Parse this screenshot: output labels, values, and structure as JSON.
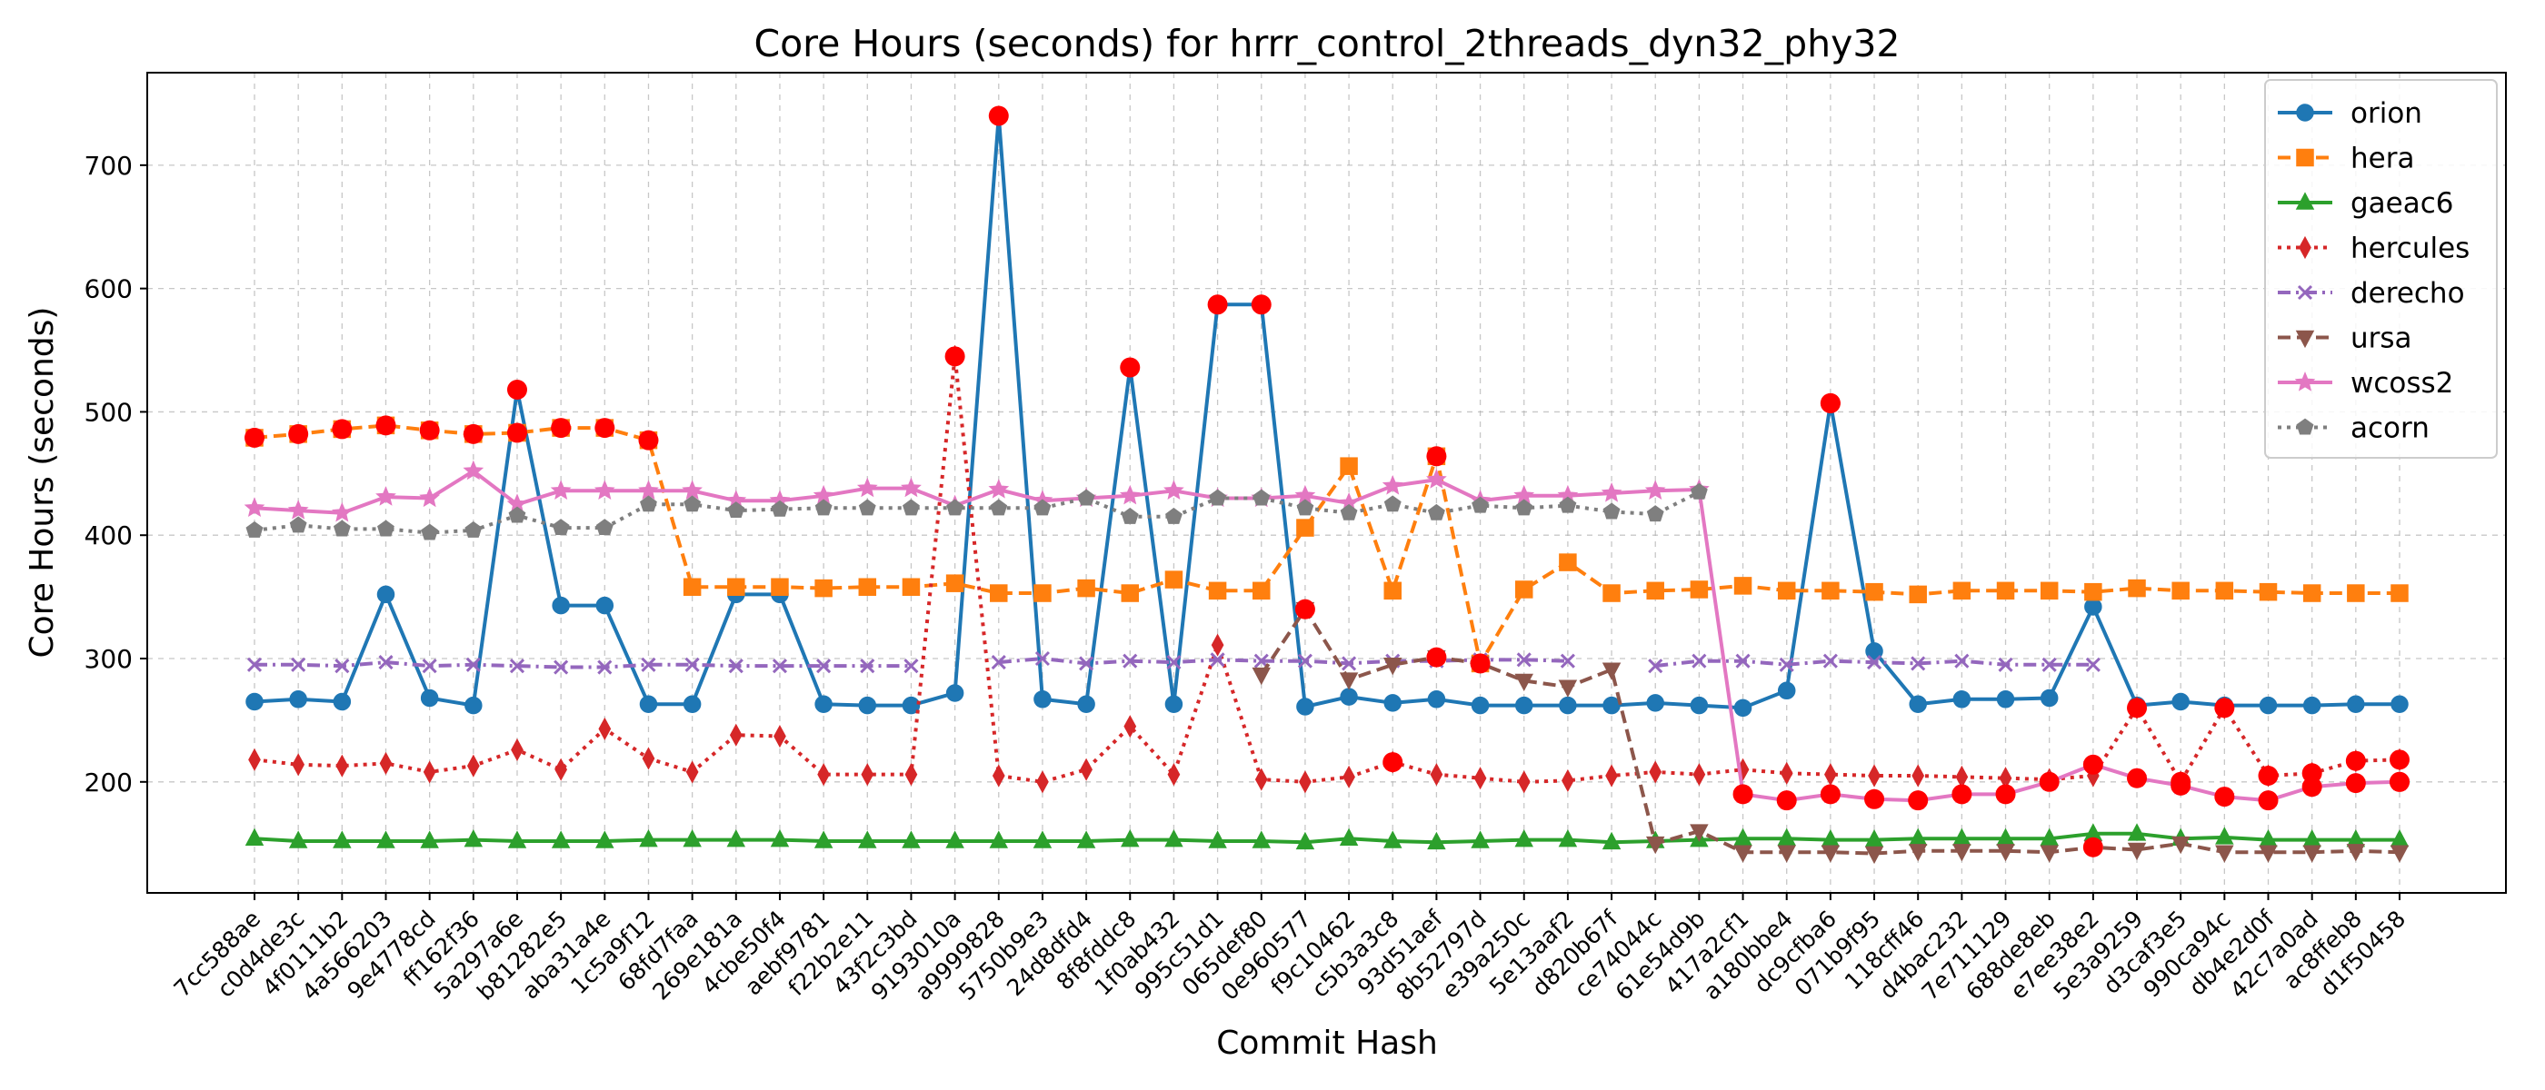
{
  "chart_data": {
    "type": "line",
    "title": "Core Hours (seconds) for hrrr_control_2threads_dyn32_phy32",
    "xlabel": "Commit Hash",
    "ylabel": "Core Hours (seconds)",
    "ylim": [
      110,
      775
    ],
    "yticks": [
      200,
      300,
      400,
      500,
      600,
      700
    ],
    "grid": true,
    "legend_position": "top-right",
    "categories": [
      "7cc588ae",
      "c0d4de3c",
      "4f0111b2",
      "4a566203",
      "9e4778cd",
      "ff162f36",
      "5a297a6e",
      "b81282e5",
      "aba31a4e",
      "1c5a9f12",
      "68fd7faa",
      "269e181a",
      "4cbe50f4",
      "aebf9781",
      "f22b2e11",
      "43f2c3bd",
      "9193010a",
      "a9999828",
      "5750b9e3",
      "24d8dfd4",
      "8f8fddc8",
      "1f0ab432",
      "995c51d1",
      "065def80",
      "0e960577",
      "f9c10462",
      "c5b3a3c8",
      "93d51aef",
      "8b52797d",
      "e39a250c",
      "5e13aaf2",
      "d820b67f",
      "ce74044c",
      "61e54d9b",
      "417a2cf1",
      "a180bbe4",
      "dc9cfba6",
      "071b9f95",
      "118cff46",
      "d4bac232",
      "7e711129",
      "688de8eb",
      "e7ee38e2",
      "5e3a9259",
      "d3caf3e5",
      "990ca94c",
      "db4e2d0f",
      "42c7a0ad",
      "ac8ffeb8",
      "d1f50458"
    ],
    "series": [
      {
        "name": "orion",
        "color": "#1f77b4",
        "dash": "solid",
        "marker": "circle",
        "values": [
          265,
          267,
          265,
          352,
          268,
          262,
          518,
          343,
          343,
          263,
          263,
          352,
          352,
          263,
          262,
          262,
          272,
          740,
          267,
          263,
          536,
          263,
          587,
          587,
          261,
          269,
          264,
          267,
          262,
          262,
          262,
          262,
          264,
          262,
          260,
          274,
          507,
          306,
          263,
          267,
          267,
          268,
          342,
          262,
          265,
          262,
          262,
          262,
          263,
          263
        ]
      },
      {
        "name": "hera",
        "color": "#ff7f0e",
        "dash": "dashed",
        "marker": "square",
        "values": [
          479,
          482,
          486,
          489,
          485,
          482,
          483,
          487,
          487,
          477,
          358,
          358,
          358,
          357,
          358,
          358,
          361,
          353,
          353,
          357,
          353,
          364,
          355,
          355,
          406,
          456,
          355,
          464,
          296,
          356,
          378,
          353,
          355,
          356,
          359,
          355,
          355,
          354,
          352,
          355,
          355,
          355,
          354,
          357,
          355,
          355,
          354,
          353,
          353,
          353
        ]
      },
      {
        "name": "gaeac6",
        "color": "#2ca02c",
        "dash": "solid",
        "marker": "triangle-up",
        "values": [
          154,
          152,
          152,
          152,
          152,
          153,
          152,
          152,
          152,
          153,
          153,
          153,
          153,
          152,
          152,
          152,
          152,
          152,
          152,
          152,
          153,
          153,
          152,
          152,
          151,
          154,
          152,
          151,
          152,
          153,
          153,
          151,
          152,
          153,
          154,
          154,
          153,
          153,
          154,
          154,
          154,
          154,
          158,
          158,
          154,
          155,
          153,
          153,
          153,
          153
        ]
      },
      {
        "name": "hercules",
        "color": "#d62728",
        "dash": "dotted",
        "marker": "diamond",
        "values": [
          218,
          214,
          213,
          215,
          208,
          213,
          226,
          210,
          243,
          219,
          208,
          238,
          237,
          206,
          206,
          206,
          545,
          205,
          200,
          210,
          245,
          206,
          311,
          202,
          200,
          204,
          216,
          206,
          203,
          200,
          201,
          205,
          208,
          206,
          210,
          207,
          206,
          205,
          205,
          204,
          203,
          202,
          205,
          260,
          200,
          260,
          205,
          207,
          217,
          218
        ]
      },
      {
        "name": "derecho",
        "color": "#9467bd",
        "dash": "dashdot",
        "marker": "x",
        "values": [
          295,
          295,
          294,
          297,
          294,
          295,
          294,
          293,
          293,
          295,
          295,
          294,
          294,
          294,
          294,
          294,
          null,
          297,
          300,
          296,
          298,
          297,
          299,
          298,
          298,
          296,
          298,
          298,
          299,
          299,
          298,
          null,
          294,
          298,
          298,
          295,
          298,
          297,
          296,
          298,
          295,
          295,
          295,
          null,
          null,
          null,
          null,
          null,
          null,
          null
        ]
      },
      {
        "name": "ursa",
        "color": "#8c564b",
        "dash": "dashed",
        "marker": "triangle-down",
        "values": [
          null,
          null,
          null,
          null,
          null,
          null,
          null,
          null,
          null,
          null,
          null,
          null,
          null,
          null,
          null,
          null,
          null,
          null,
          null,
          null,
          null,
          null,
          null,
          287,
          340,
          283,
          295,
          301,
          296,
          282,
          277,
          291,
          150,
          160,
          143,
          143,
          143,
          142,
          144,
          144,
          144,
          143,
          147,
          145,
          150,
          143,
          143,
          143,
          144,
          143
        ]
      },
      {
        "name": "wcoss2",
        "color": "#e377c2",
        "dash": "solid",
        "marker": "star",
        "values": [
          422,
          420,
          418,
          431,
          430,
          452,
          425,
          436,
          436,
          436,
          436,
          428,
          428,
          432,
          438,
          438,
          424,
          437,
          428,
          430,
          432,
          436,
          430,
          430,
          432,
          426,
          440,
          445,
          428,
          432,
          432,
          434,
          436,
          437,
          190,
          185,
          190,
          186,
          185,
          190,
          190,
          200,
          214,
          203,
          197,
          188,
          185,
          196,
          199,
          200
        ]
      },
      {
        "name": "acorn",
        "color": "#7f7f7f",
        "dash": "dotted",
        "marker": "pentagon",
        "values": [
          404,
          408,
          405,
          405,
          402,
          404,
          416,
          406,
          406,
          425,
          425,
          420,
          421,
          422,
          422,
          422,
          422,
          422,
          422,
          430,
          415,
          415,
          430,
          430,
          422,
          418,
          425,
          418,
          424,
          422,
          424,
          419,
          417,
          435,
          null,
          null,
          null,
          null,
          null,
          null,
          null,
          null,
          null,
          null,
          null,
          null,
          null,
          null,
          null,
          null
        ]
      }
    ],
    "highlights": {
      "color": "#ff0000",
      "points": [
        [
          "orion",
          6
        ],
        [
          "orion",
          17
        ],
        [
          "orion",
          20
        ],
        [
          "orion",
          22
        ],
        [
          "orion",
          23
        ],
        [
          "orion",
          36
        ],
        [
          "hera",
          0
        ],
        [
          "hera",
          1
        ],
        [
          "hera",
          2
        ],
        [
          "hera",
          3
        ],
        [
          "hera",
          4
        ],
        [
          "hera",
          5
        ],
        [
          "hera",
          6
        ],
        [
          "hera",
          7
        ],
        [
          "hera",
          8
        ],
        [
          "hera",
          9
        ],
        [
          "hera",
          27
        ],
        [
          "hera",
          28
        ],
        [
          "hercules",
          16
        ],
        [
          "hercules",
          26
        ],
        [
          "hercules",
          43
        ],
        [
          "ursa",
          24
        ],
        [
          "ursa",
          27
        ],
        [
          "ursa",
          42
        ],
        [
          "wcoss2",
          34
        ],
        [
          "wcoss2",
          35
        ],
        [
          "wcoss2",
          36
        ],
        [
          "wcoss2",
          37
        ],
        [
          "wcoss2",
          38
        ],
        [
          "wcoss2",
          39
        ],
        [
          "wcoss2",
          40
        ],
        [
          "wcoss2",
          41
        ],
        [
          "wcoss2",
          42
        ],
        [
          "wcoss2",
          43
        ],
        [
          "wcoss2",
          44
        ],
        [
          "wcoss2",
          45
        ],
        [
          "wcoss2",
          46
        ],
        [
          "wcoss2",
          47
        ],
        [
          "wcoss2",
          48
        ],
        [
          "wcoss2",
          49
        ],
        [
          "hercules",
          44
        ],
        [
          "hercules",
          45
        ],
        [
          "hercules",
          46
        ],
        [
          "hercules",
          47
        ],
        [
          "hercules",
          48
        ],
        [
          "hercules",
          49
        ],
        [
          "wcoss2",
          49
        ],
        [
          "orion",
          36
        ]
      ]
    }
  }
}
